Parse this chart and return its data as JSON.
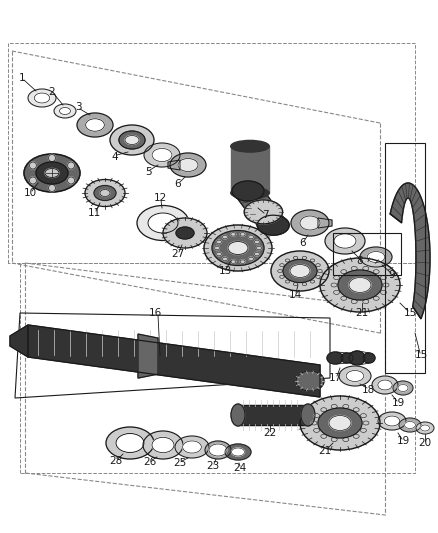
{
  "bg_color": "#ffffff",
  "line_color": "#1a1a1a",
  "dark_gray": "#333333",
  "mid_gray": "#666666",
  "light_gray": "#aaaaaa",
  "lighter_gray": "#cccccc",
  "very_light": "#e8e8e8",
  "chain_dark": "#444444",
  "figsize": [
    4.38,
    5.33
  ],
  "dpi": 100
}
